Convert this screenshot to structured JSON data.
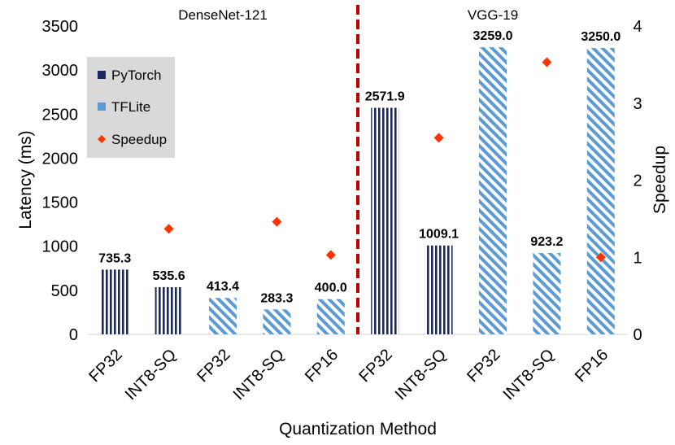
{
  "chart_data": {
    "type": "bar",
    "xlabel": "Quantization Method",
    "ylabel": "Latency (ms)",
    "y2label": "Speedup",
    "ylim": [
      0,
      3500
    ],
    "y2lim": [
      0,
      4
    ],
    "yticks": [
      0,
      500,
      1000,
      1500,
      2000,
      2500,
      3000,
      3500
    ],
    "y2ticks": [
      0,
      1,
      2,
      3,
      4
    ],
    "groups": [
      {
        "name": "DenseNet-121",
        "bars": [
          0,
          1,
          2,
          3,
          4
        ]
      },
      {
        "name": "VGG-19",
        "bars": [
          5,
          6,
          7,
          8,
          9
        ]
      }
    ],
    "bars": [
      {
        "category": "FP32",
        "framework": "PyTorch",
        "latency": 735.3,
        "label": "735.3",
        "speedup": null
      },
      {
        "category": "INT8-SQ",
        "framework": "PyTorch",
        "latency": 535.6,
        "label": "535.6",
        "speedup": 1.37
      },
      {
        "category": "FP32",
        "framework": "TFLite",
        "latency": 413.4,
        "label": "413.4",
        "speedup": null
      },
      {
        "category": "INT8-SQ",
        "framework": "TFLite",
        "latency": 283.3,
        "label": "283.3",
        "speedup": 1.46
      },
      {
        "category": "FP16",
        "framework": "TFLite",
        "latency": 400.0,
        "label": "400.0",
        "speedup": 1.03
      },
      {
        "category": "FP32",
        "framework": "PyTorch",
        "latency": 2571.9,
        "label": "2571.9",
        "speedup": null
      },
      {
        "category": "INT8-SQ",
        "framework": "PyTorch",
        "latency": 1009.1,
        "label": "1009.1",
        "speedup": 2.55
      },
      {
        "category": "FP32",
        "framework": "TFLite",
        "latency": 3259.0,
        "label": "3259.0",
        "speedup": null
      },
      {
        "category": "INT8-SQ",
        "framework": "TFLite",
        "latency": 923.2,
        "label": "923.2",
        "speedup": 3.53
      },
      {
        "category": "FP16",
        "framework": "TFLite",
        "latency": 3250.0,
        "label": "3250.0",
        "speedup": 1.0
      }
    ],
    "legend": [
      {
        "name": "PyTorch",
        "kind": "bar"
      },
      {
        "name": "TFLite",
        "kind": "bar"
      },
      {
        "name": "Speedup",
        "kind": "marker"
      }
    ],
    "legend_position": "top-left",
    "colors": {
      "pytorch": "#1a2a5e",
      "tflite": "#5b9bd5",
      "speedup": "#ff3300",
      "divider": "#c00000",
      "legend_bg": "#d9d9d9"
    }
  }
}
